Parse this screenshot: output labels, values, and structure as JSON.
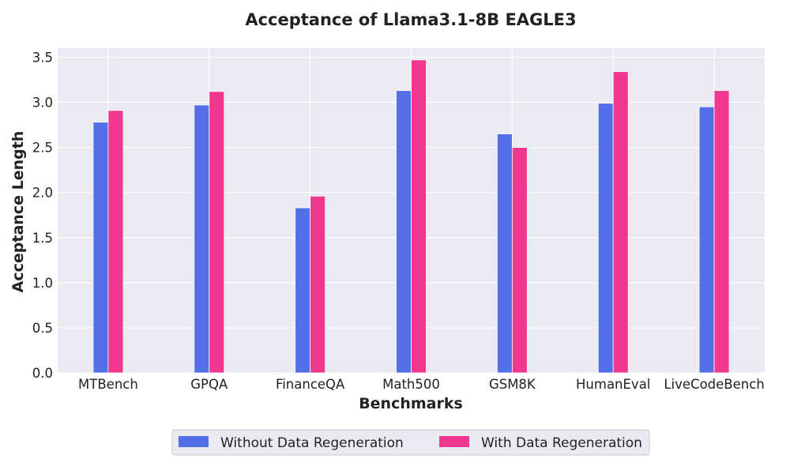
{
  "chart_data": {
    "type": "bar",
    "title": "Acceptance of Llama3.1-8B EAGLE3",
    "xlabel": "Benchmarks",
    "ylabel": "Acceptance Length",
    "categories": [
      "MTBench",
      "GPQA",
      "FinanceQA",
      "Math500",
      "GSM8K",
      "HumanEval",
      "LiveCodeBench"
    ],
    "series": [
      {
        "name": "Without Data Regeneration",
        "color": "#5470e8",
        "values": [
          2.78,
          2.97,
          1.83,
          3.13,
          2.65,
          2.99,
          2.95
        ]
      },
      {
        "name": "With Data Regeneration",
        "color": "#f2378f",
        "values": [
          2.91,
          3.12,
          1.96,
          3.47,
          2.5,
          3.34,
          3.13
        ]
      }
    ],
    "ylim": [
      0,
      3.6
    ],
    "yticks": [
      "0.0",
      "0.5",
      "1.0",
      "1.5",
      "2.0",
      "2.5",
      "3.0",
      "3.5"
    ],
    "grid": true,
    "legend_position": "bottom-center",
    "plot_background": "#eaeaf2"
  }
}
